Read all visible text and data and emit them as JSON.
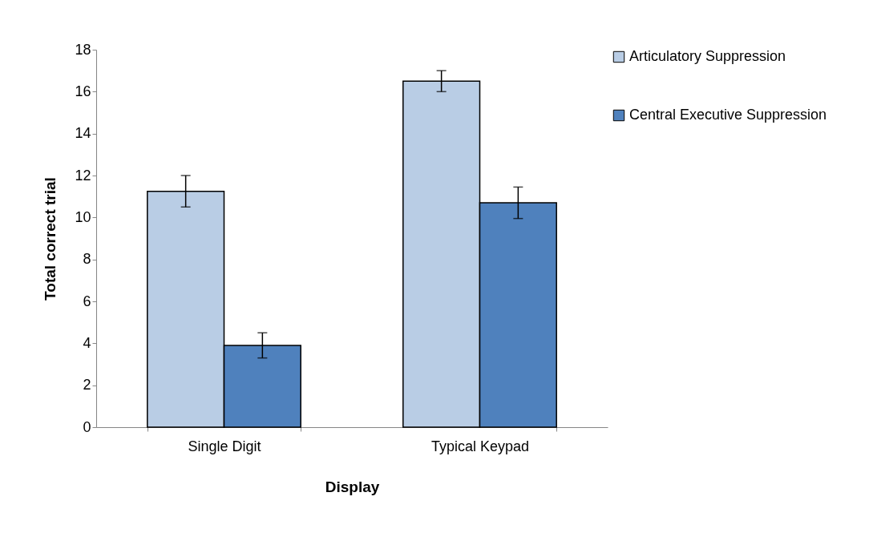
{
  "chart_data": {
    "type": "bar",
    "xlabel": "Display",
    "ylabel": "Total correct trial",
    "categories": [
      "Single Digit",
      "Typical Keypad"
    ],
    "series": [
      {
        "name": "Articulatory Suppression",
        "color": "#b9cde5",
        "values": [
          11.25,
          16.5
        ],
        "errors": [
          0.75,
          0.5
        ]
      },
      {
        "name": "Central Executive Suppression",
        "color": "#4f81bd",
        "values": [
          3.9,
          10.7
        ],
        "errors": [
          0.6,
          0.75
        ]
      }
    ],
    "ylim": [
      0,
      18
    ],
    "yticks": [
      0,
      2,
      4,
      6,
      8,
      10,
      12,
      14,
      16,
      18
    ],
    "grid": false,
    "legend": "right"
  }
}
